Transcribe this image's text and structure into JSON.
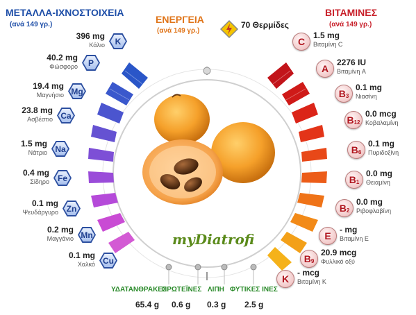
{
  "minerals": {
    "title": "ΜΕΤΑΛΛΑ-ΙΧΝΟΣΤΟΙΧΕΙΑ",
    "subtitle": "(ανά 149 γρ.)",
    "items": [
      {
        "value": "396 mg",
        "name": "Κάλιο",
        "symbol": "K"
      },
      {
        "value": "40.2 mg",
        "name": "Φώσφορο",
        "symbol": "P"
      },
      {
        "value": "19.4 mg",
        "name": "Μαγνήσιο",
        "symbol": "Mg"
      },
      {
        "value": "23.8 mg",
        "name": "Ασβέστιο",
        "symbol": "Ca"
      },
      {
        "value": "1.5 mg",
        "name": "Νάτριο",
        "symbol": "Na"
      },
      {
        "value": "0.4 mg",
        "name": "Σίδηρο",
        "symbol": "Fe"
      },
      {
        "value": "0.1 mg",
        "name": "Ψευδάργυρο",
        "symbol": "Zn"
      },
      {
        "value": "0.2 mg",
        "name": "Μαγγάνιο",
        "symbol": "Mn"
      },
      {
        "value": "0.1 mg",
        "name": "Χαλκό",
        "symbol": "Cu"
      }
    ]
  },
  "energy": {
    "title": "ΕΝΕΡΓΕΙΑ",
    "subtitle": "(ανά 149 γρ.)",
    "calories": "70 Θερμίδες"
  },
  "vitamins": {
    "title": "ΒΙΤΑΜΙΝΕΣ",
    "subtitle": "(ανά 149 γρ.)",
    "items": [
      {
        "value": "1.5 mg",
        "name": "Βιταμίνη C",
        "symbol": "C",
        "sub": ""
      },
      {
        "value": "2276 IU",
        "name": "Βιταμίνη A",
        "symbol": "A",
        "sub": ""
      },
      {
        "value": "0.1 mg",
        "name": "Νιασίνη",
        "symbol": "B",
        "sub": "3"
      },
      {
        "value": "0.0 mcg",
        "name": "Κοβαλαμίνη",
        "symbol": "B",
        "sub": "12"
      },
      {
        "value": "0.1 mg",
        "name": "Πυριδοξίνη",
        "symbol": "B",
        "sub": "6"
      },
      {
        "value": "0.0 mg",
        "name": "Θειαμίνη",
        "symbol": "B",
        "sub": "1"
      },
      {
        "value": "0.0 mg",
        "name": "Ριβοφλαβίνη",
        "symbol": "B",
        "sub": "2"
      },
      {
        "value": "- mg",
        "name": "Βιταμίνη E",
        "symbol": "E",
        "sub": ""
      },
      {
        "value": "20.9 mcg",
        "name": "Φυλλικό οξύ",
        "symbol": "B",
        "sub": "9"
      },
      {
        "value": "- mcg",
        "name": "Βιταμίνη K",
        "symbol": "K",
        "sub": ""
      }
    ]
  },
  "macros": [
    {
      "label": "ΥΔΑΤΑΝΘΡΑΚΕΣ",
      "value": "65.4 g"
    },
    {
      "label": "ΠΡΩΤΕΪΝΕΣ",
      "value": "0.6 g"
    },
    {
      "label": "ΛΙΠΗ",
      "value": "0.3 g"
    },
    {
      "label": "ΦΥΤΙΚΕΣ ΙΝΕΣ",
      "value": "2.5 g"
    }
  ],
  "logo": "myDiatrofi",
  "colors": {
    "minerals": "#1f4fa8",
    "vitamins": "#c8202a",
    "energy": "#e0751a",
    "macros": "#2a8a2a"
  }
}
